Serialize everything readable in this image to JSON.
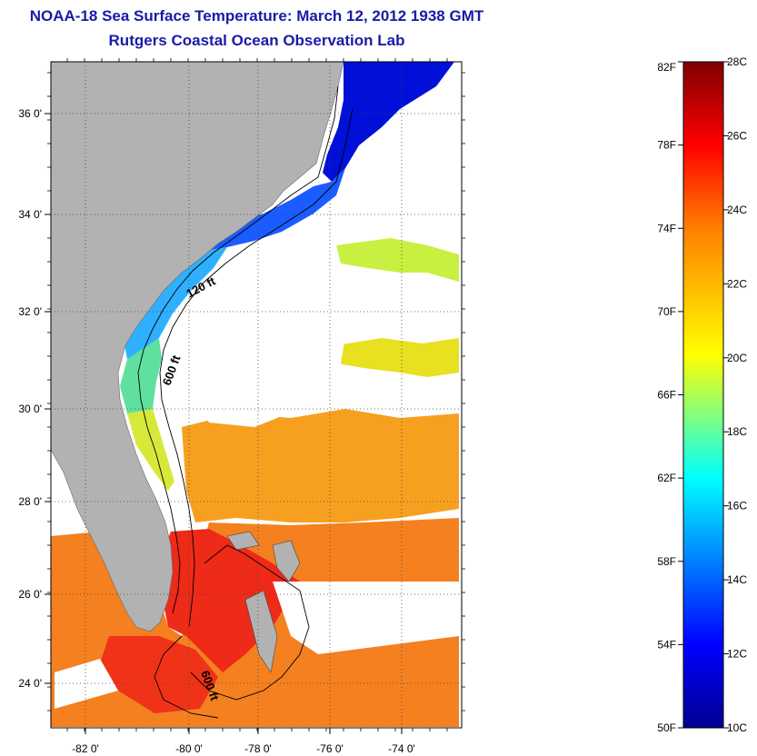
{
  "title": "NOAA-18 Sea Surface Temperature:  March 12, 2012 1938 GMT",
  "subtitle": "Rutgers Coastal Ocean Observation Lab",
  "map": {
    "lon_ticks": [
      "-82 0'",
      "-80 0'",
      "-78 0'",
      "-76 0'",
      "-74 0'"
    ],
    "lat_ticks": [
      "36 0'",
      "34 0'",
      "32 0'",
      "30 0'",
      "28 0'",
      "26 0'",
      "24 0'"
    ],
    "contour_labels": [
      "120 ft",
      "600 ft",
      "600 ft"
    ],
    "colors": {
      "land": "#b2b2b2",
      "no_data": "#ffffff"
    }
  },
  "colorbar": {
    "fahrenheit_labels": [
      "82F",
      "78F",
      "74F",
      "70F",
      "66F",
      "62F",
      "58F",
      "54F",
      "50F"
    ],
    "celsius_labels": [
      "28C",
      "26C",
      "24C",
      "22C",
      "20C",
      "18C",
      "16C",
      "14C",
      "12C",
      "10C"
    ],
    "colormap": [
      "#00008f",
      "#0000ff",
      "#00ffff",
      "#ffff00",
      "#ff7f00",
      "#ff0000",
      "#7f0000"
    ]
  }
}
